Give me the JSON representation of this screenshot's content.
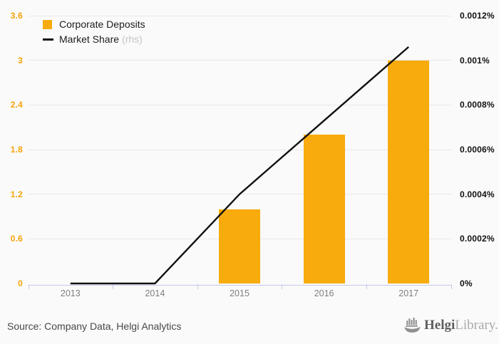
{
  "legend": {
    "items": [
      {
        "label": "Corporate Deposits",
        "suffix": "",
        "type": "bar"
      },
      {
        "label": "Market Share",
        "suffix": "(rhs)",
        "type": "line"
      }
    ]
  },
  "chart_data": {
    "type": "bar",
    "categories": [
      "2013",
      "2014",
      "2015",
      "2016",
      "2017"
    ],
    "series": [
      {
        "name": "Corporate Deposits",
        "type": "bar",
        "axis": "left",
        "color": "#F8AB0C",
        "values": [
          0,
          0,
          1.0,
          2.0,
          3.0
        ]
      },
      {
        "name": "Market Share (rhs)",
        "type": "line",
        "axis": "right",
        "color": "#111111",
        "values": [
          0,
          0,
          0.0004,
          0.00073,
          0.00106
        ]
      }
    ],
    "left_axis": {
      "tick_labels": [
        "0",
        "0.6",
        "1.2",
        "1.8",
        "2.4",
        "3",
        "3.6"
      ],
      "tick_values": [
        0,
        0.6,
        1.2,
        1.8,
        2.4,
        3,
        3.6
      ],
      "min": 0,
      "max": 3.6,
      "color": "#F5A40B"
    },
    "right_axis": {
      "tick_labels": [
        "0%",
        "0.0002%",
        "0.0004%",
        "0.0006%",
        "0.0008%",
        "0.001%",
        "0.0012%"
      ],
      "tick_values": [
        0,
        0.0002,
        0.0004,
        0.0006,
        0.0008,
        0.001,
        0.0012
      ],
      "min": 0,
      "max": 0.0012,
      "color": "#111111"
    },
    "grid": true,
    "legend_position": "top-left",
    "axis_line_color": "#c5cbe9",
    "gridline_color": "#e9e9e9",
    "background_color": "#fafafa"
  },
  "footer": {
    "source": "Source: Company Data, Helgi Analytics",
    "logo": {
      "bold": "Helgi",
      "light": "Library."
    }
  }
}
